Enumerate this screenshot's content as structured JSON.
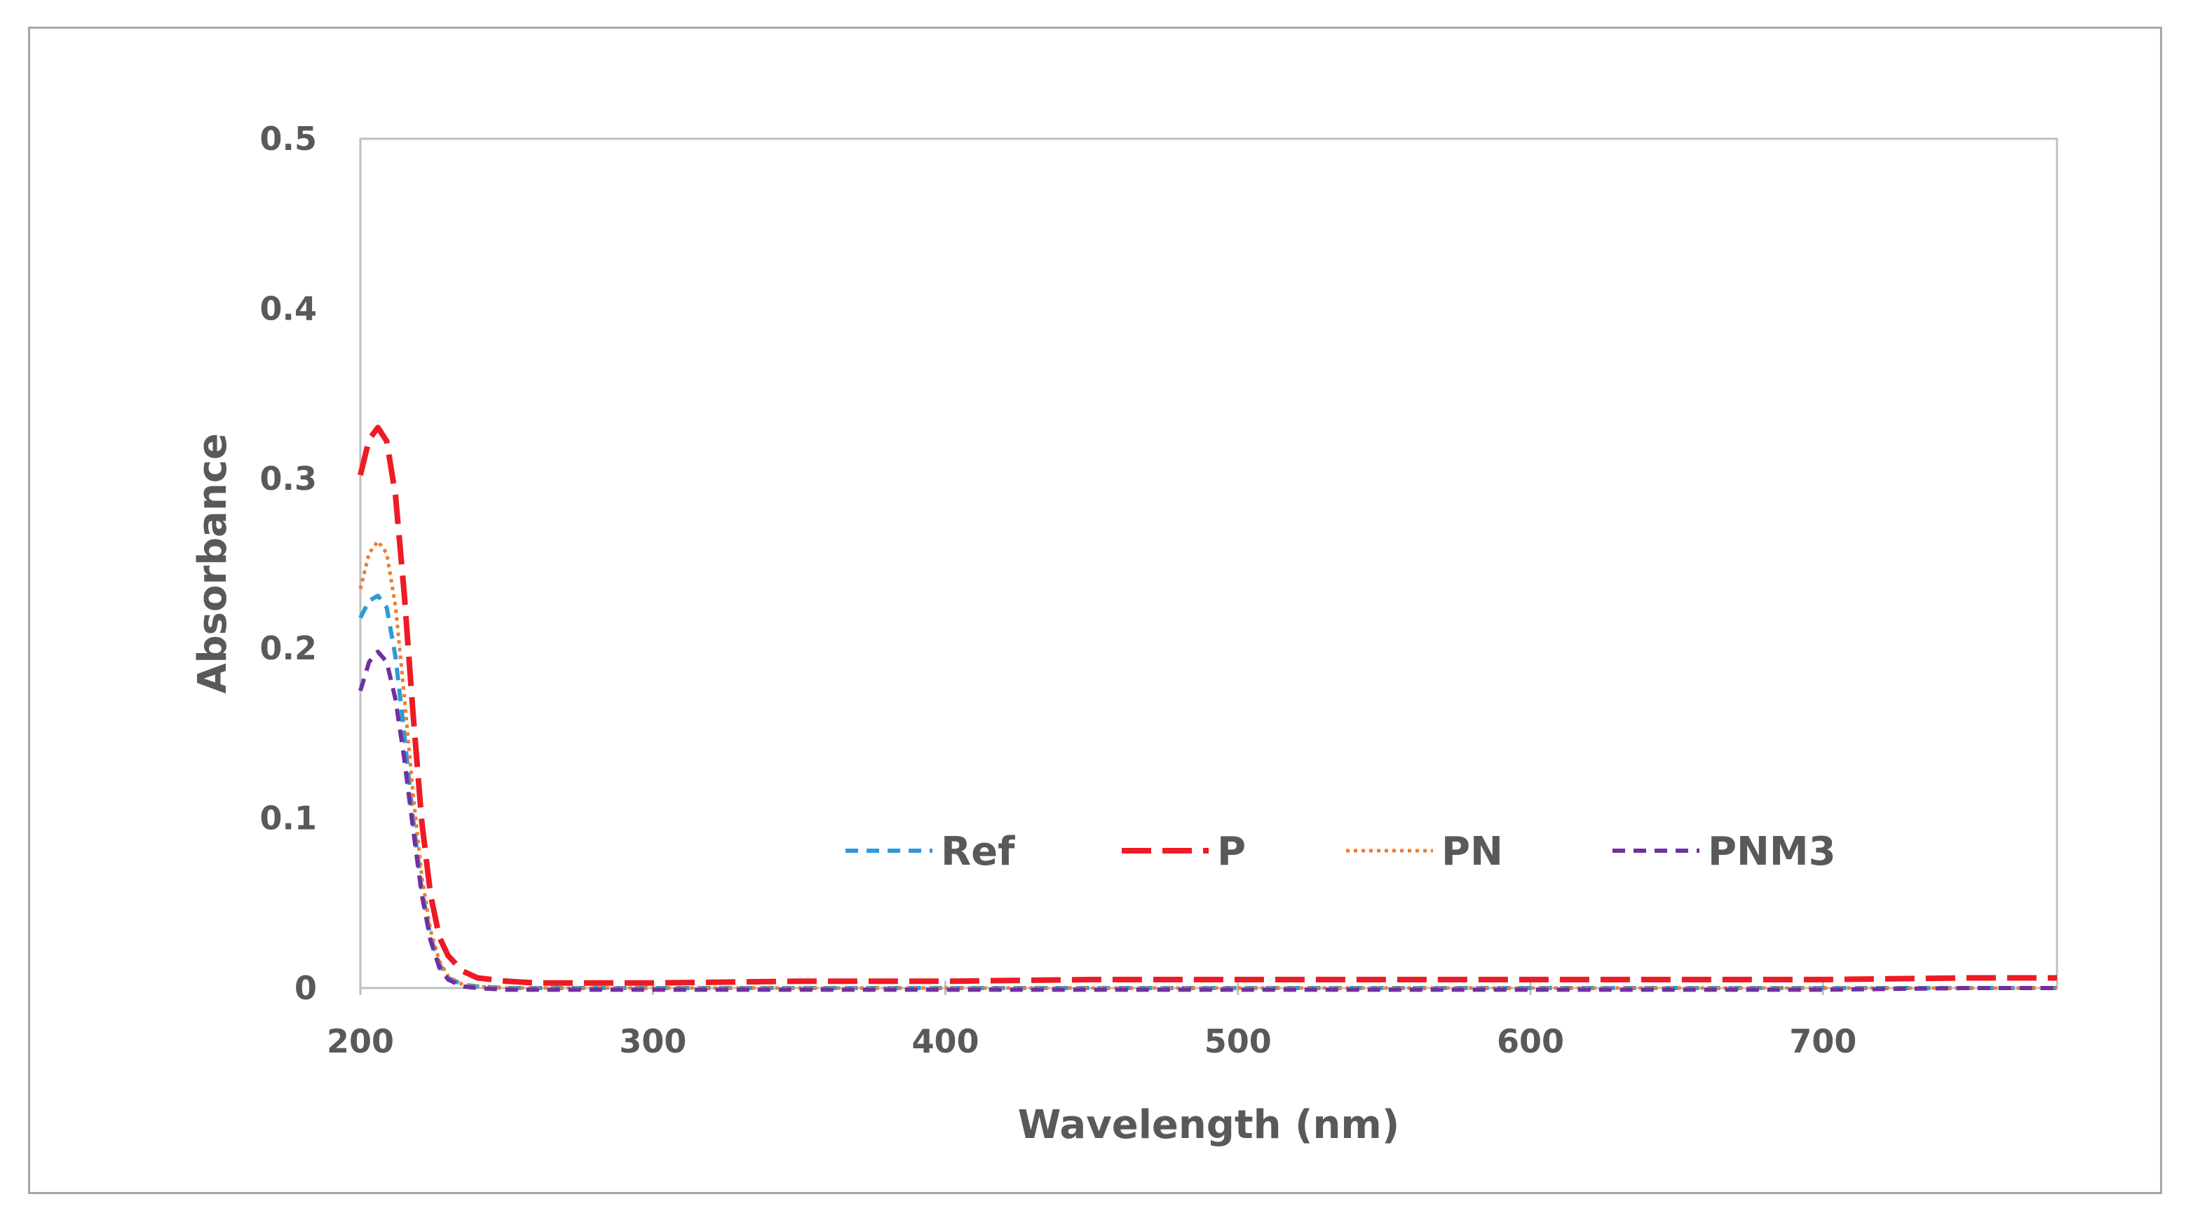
{
  "chart_data": {
    "type": "line",
    "title": "",
    "xlabel": "Wavelength (nm)",
    "ylabel": "Absorbance",
    "xlim": [
      200,
      780
    ],
    "ylim": [
      0,
      0.5
    ],
    "x_ticks": [
      200,
      300,
      400,
      500,
      600,
      700
    ],
    "y_ticks": [
      0,
      0.1,
      0.2,
      0.3,
      0.4,
      0.5
    ],
    "x_tick_labels": [
      "200",
      "300",
      "400",
      "500",
      "600",
      "700"
    ],
    "y_tick_labels": [
      "0",
      "0.1",
      "0.2",
      "0.3",
      "0.4",
      "0.5"
    ],
    "grid": false,
    "legend_position": "center-right inside plot",
    "x": [
      200,
      203,
      206,
      209,
      212,
      215,
      218,
      221,
      224,
      227,
      230,
      235,
      240,
      250,
      260,
      280,
      300,
      350,
      400,
      450,
      500,
      550,
      600,
      650,
      700,
      750,
      780
    ],
    "series": [
      {
        "name": "Ref",
        "color": "#2e9bd6",
        "dash": "short-dash",
        "values": [
          0.218,
          0.228,
          0.231,
          0.224,
          0.195,
          0.15,
          0.1,
          0.058,
          0.03,
          0.014,
          0.006,
          0.002,
          0.001,
          0.0,
          0.0,
          0.0,
          0.0,
          0.0,
          0.0,
          0.0,
          0.0,
          0.0,
          0.0,
          0.0,
          0.0,
          0.0,
          0.0
        ]
      },
      {
        "name": "P",
        "color": "#ee1b24",
        "dash": "long-dash",
        "values": [
          0.302,
          0.323,
          0.33,
          0.322,
          0.29,
          0.232,
          0.162,
          0.098,
          0.055,
          0.03,
          0.019,
          0.01,
          0.006,
          0.004,
          0.003,
          0.003,
          0.003,
          0.004,
          0.004,
          0.005,
          0.005,
          0.005,
          0.005,
          0.005,
          0.005,
          0.006,
          0.006
        ]
      },
      {
        "name": "PN",
        "color": "#ed7d31",
        "dash": "dotted",
        "values": [
          0.235,
          0.256,
          0.263,
          0.256,
          0.225,
          0.172,
          0.115,
          0.066,
          0.034,
          0.016,
          0.007,
          0.002,
          0.001,
          0.0,
          0.0,
          0.0,
          0.0,
          0.0,
          0.0,
          0.0,
          0.0,
          0.0,
          0.0,
          0.0,
          0.0,
          0.0,
          0.0
        ]
      },
      {
        "name": "PNM3",
        "color": "#7030a0",
        "dash": "short-dash",
        "values": [
          0.175,
          0.192,
          0.198,
          0.192,
          0.17,
          0.135,
          0.094,
          0.055,
          0.028,
          0.012,
          0.005,
          0.001,
          0.0,
          -0.001,
          -0.001,
          -0.001,
          -0.001,
          -0.001,
          -0.001,
          -0.001,
          -0.001,
          -0.001,
          -0.001,
          -0.001,
          -0.001,
          0.0,
          0.0
        ]
      }
    ]
  }
}
